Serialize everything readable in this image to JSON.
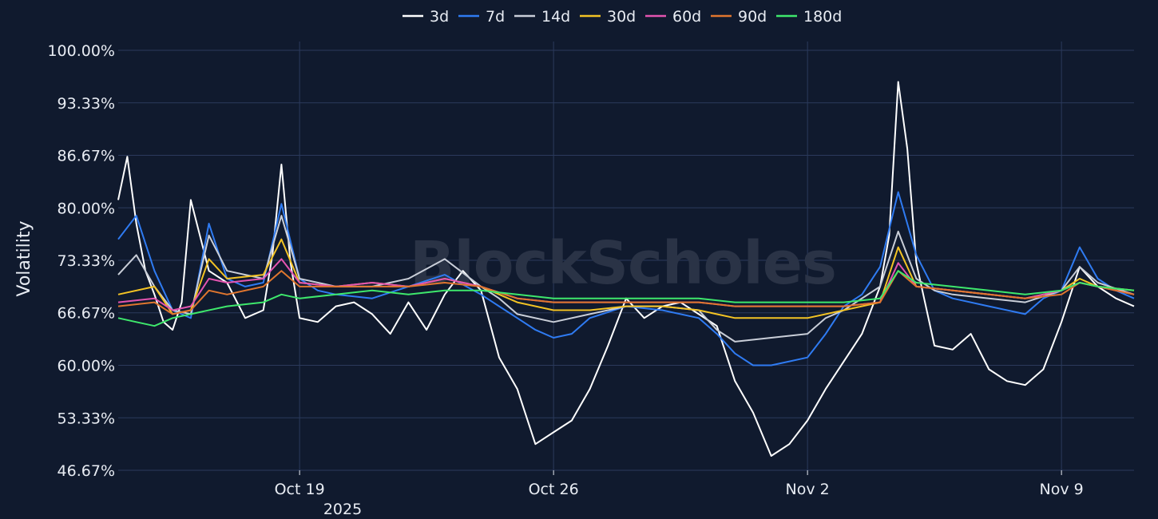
{
  "chart_data": {
    "type": "line",
    "ylabel": "Volatility",
    "xlabel": "",
    "year_label": "2025",
    "watermark": "BlockScholes",
    "x_range": [
      "2025-10-14T00:00",
      "2025-11-11T00:00"
    ],
    "x_ticks": [
      {
        "date": "2025-10-19",
        "label": "Oct 19"
      },
      {
        "date": "2025-10-26",
        "label": "Oct 26"
      },
      {
        "date": "2025-11-02",
        "label": "Nov 2"
      },
      {
        "date": "2025-11-09",
        "label": "Nov 9"
      }
    ],
    "ylim": [
      46.67,
      100.0
    ],
    "y_ticks": [
      "46.67%",
      "53.33%",
      "60.00%",
      "66.67%",
      "73.33%",
      "80.00%",
      "86.67%",
      "93.33%",
      "100.00%"
    ],
    "y_tick_values": [
      46.67,
      53.33,
      60.0,
      66.67,
      73.33,
      80.0,
      86.67,
      93.33,
      100.0
    ],
    "grid": true,
    "legend_position": "top-center",
    "series": [
      {
        "name": "3d",
        "color": "#ffffff",
        "x": [
          "2025-10-14T00:00",
          "2025-10-14T06:00",
          "2025-10-14T12:00",
          "2025-10-14T18:00",
          "2025-10-15T00:00",
          "2025-10-15T06:00",
          "2025-10-15T12:00",
          "2025-10-15T18:00",
          "2025-10-16T00:00",
          "2025-10-16T12:00",
          "2025-10-17T00:00",
          "2025-10-17T12:00",
          "2025-10-18T00:00",
          "2025-10-18T06:00",
          "2025-10-18T12:00",
          "2025-10-18T18:00",
          "2025-10-19T00:00",
          "2025-10-19T12:00",
          "2025-10-20T00:00",
          "2025-10-20T12:00",
          "2025-10-21T00:00",
          "2025-10-21T12:00",
          "2025-10-22T00:00",
          "2025-10-22T12:00",
          "2025-10-23T00:00",
          "2025-10-23T12:00",
          "2025-10-24T00:00",
          "2025-10-24T12:00",
          "2025-10-25T00:00",
          "2025-10-25T12:00",
          "2025-10-26T00:00",
          "2025-10-26T12:00",
          "2025-10-27T00:00",
          "2025-10-27T12:00",
          "2025-10-28T00:00",
          "2025-10-28T12:00",
          "2025-10-29T00:00",
          "2025-10-29T12:00",
          "2025-10-30T00:00",
          "2025-10-30T12:00",
          "2025-10-31T00:00",
          "2025-10-31T12:00",
          "2025-11-01T00:00",
          "2025-11-01T12:00",
          "2025-11-02T00:00",
          "2025-11-02T12:00",
          "2025-11-03T00:00",
          "2025-11-03T12:00",
          "2025-11-04T00:00",
          "2025-11-04T06:00",
          "2025-11-04T12:00",
          "2025-11-04T18:00",
          "2025-11-05T00:00",
          "2025-11-05T12:00",
          "2025-11-06T00:00",
          "2025-11-06T12:00",
          "2025-11-07T00:00",
          "2025-11-07T12:00",
          "2025-11-08T00:00",
          "2025-11-08T12:00",
          "2025-11-09T00:00",
          "2025-11-09T12:00",
          "2025-11-10T00:00",
          "2025-11-10T12:00",
          "2025-11-11T00:00"
        ],
        "y": [
          81.0,
          86.5,
          78.0,
          72.0,
          69.0,
          65.5,
          64.5,
          68.0,
          81.0,
          72.0,
          70.5,
          66.0,
          67.0,
          74.0,
          85.5,
          73.0,
          66.0,
          65.5,
          67.5,
          68.0,
          66.5,
          64.0,
          68.0,
          64.5,
          69.0,
          72.0,
          69.5,
          61.0,
          57.0,
          50.0,
          51.5,
          53.0,
          57.0,
          62.5,
          68.5,
          66.0,
          67.5,
          68.0,
          66.5,
          65.0,
          58.0,
          54.0,
          48.5,
          50.0,
          53.0,
          57.0,
          60.5,
          64.0,
          70.0,
          76.5,
          96.0,
          87.5,
          73.0,
          62.5,
          62.0,
          64.0,
          59.5,
          58.0,
          57.5,
          59.5,
          65.5,
          72.5,
          70.0,
          68.5,
          67.5
        ]
      },
      {
        "name": "7d",
        "color": "#2f7bf2",
        "x": [
          "2025-10-14T00:00",
          "2025-10-14T12:00",
          "2025-10-15T00:00",
          "2025-10-15T12:00",
          "2025-10-16T00:00",
          "2025-10-16T12:00",
          "2025-10-17T00:00",
          "2025-10-17T12:00",
          "2025-10-18T00:00",
          "2025-10-18T12:00",
          "2025-10-19T00:00",
          "2025-10-19T12:00",
          "2025-10-20T00:00",
          "2025-10-21T00:00",
          "2025-10-22T00:00",
          "2025-10-23T00:00",
          "2025-10-24T00:00",
          "2025-10-24T12:00",
          "2025-10-25T00:00",
          "2025-10-25T12:00",
          "2025-10-26T00:00",
          "2025-10-26T12:00",
          "2025-10-27T00:00",
          "2025-10-28T00:00",
          "2025-10-29T00:00",
          "2025-10-30T00:00",
          "2025-10-30T12:00",
          "2025-10-31T00:00",
          "2025-10-31T12:00",
          "2025-11-01T00:00",
          "2025-11-01T12:00",
          "2025-11-02T00:00",
          "2025-11-02T12:00",
          "2025-11-03T00:00",
          "2025-11-03T12:00",
          "2025-11-04T00:00",
          "2025-11-04T12:00",
          "2025-11-05T00:00",
          "2025-11-05T12:00",
          "2025-11-06T00:00",
          "2025-11-07T00:00",
          "2025-11-08T00:00",
          "2025-11-08T12:00",
          "2025-11-09T00:00",
          "2025-11-09T12:00",
          "2025-11-10T00:00",
          "2025-11-10T12:00",
          "2025-11-11T00:00"
        ],
        "y": [
          76.0,
          79.0,
          72.0,
          67.0,
          66.0,
          78.0,
          71.0,
          70.0,
          70.5,
          80.5,
          71.0,
          69.5,
          69.0,
          68.5,
          70.0,
          71.5,
          69.0,
          67.5,
          66.0,
          64.5,
          63.5,
          64.0,
          66.0,
          67.5,
          67.0,
          66.0,
          64.0,
          61.5,
          60.0,
          60.0,
          60.5,
          61.0,
          64.0,
          67.5,
          69.0,
          72.5,
          82.0,
          74.0,
          69.5,
          68.5,
          67.5,
          66.5,
          68.5,
          69.5,
          75.0,
          71.0,
          69.5,
          68.5
        ]
      },
      {
        "name": "14d",
        "color": "#c9ced8",
        "x": [
          "2025-10-14T00:00",
          "2025-10-14T12:00",
          "2025-10-15T00:00",
          "2025-10-15T12:00",
          "2025-10-16T00:00",
          "2025-10-16T12:00",
          "2025-10-17T00:00",
          "2025-10-18T00:00",
          "2025-10-18T12:00",
          "2025-10-19T00:00",
          "2025-10-20T00:00",
          "2025-10-21T00:00",
          "2025-10-22T00:00",
          "2025-10-23T00:00",
          "2025-10-24T00:00",
          "2025-10-24T12:00",
          "2025-10-25T00:00",
          "2025-10-26T00:00",
          "2025-10-27T00:00",
          "2025-10-28T00:00",
          "2025-10-29T00:00",
          "2025-10-30T00:00",
          "2025-10-30T12:00",
          "2025-10-31T00:00",
          "2025-11-01T00:00",
          "2025-11-02T00:00",
          "2025-11-02T12:00",
          "2025-11-03T00:00",
          "2025-11-04T00:00",
          "2025-11-04T12:00",
          "2025-11-05T00:00",
          "2025-11-05T12:00",
          "2025-11-06T00:00",
          "2025-11-07T00:00",
          "2025-11-08T00:00",
          "2025-11-09T00:00",
          "2025-11-09T12:00",
          "2025-11-10T00:00",
          "2025-11-11T00:00"
        ],
        "y": [
          71.5,
          74.0,
          70.0,
          67.0,
          66.5,
          76.5,
          72.0,
          71.0,
          79.0,
          71.0,
          70.0,
          70.0,
          71.0,
          73.5,
          70.0,
          68.5,
          66.5,
          65.5,
          66.5,
          67.5,
          67.5,
          67.0,
          64.5,
          63.0,
          63.5,
          64.0,
          66.0,
          67.0,
          70.0,
          77.0,
          71.0,
          69.5,
          69.0,
          68.5,
          68.0,
          69.5,
          72.5,
          70.5,
          69.0
        ]
      },
      {
        "name": "30d",
        "color": "#f3c324",
        "x": [
          "2025-10-14T00:00",
          "2025-10-15T00:00",
          "2025-10-15T12:00",
          "2025-10-16T00:00",
          "2025-10-16T12:00",
          "2025-10-17T00:00",
          "2025-10-18T00:00",
          "2025-10-18T12:00",
          "2025-10-19T00:00",
          "2025-10-20T00:00",
          "2025-10-21T00:00",
          "2025-10-22T00:00",
          "2025-10-23T00:00",
          "2025-10-24T00:00",
          "2025-10-25T00:00",
          "2025-10-26T00:00",
          "2025-10-27T00:00",
          "2025-10-28T00:00",
          "2025-10-29T00:00",
          "2025-10-30T00:00",
          "2025-10-31T00:00",
          "2025-11-01T00:00",
          "2025-11-02T00:00",
          "2025-11-03T00:00",
          "2025-11-04T00:00",
          "2025-11-04T12:00",
          "2025-11-05T00:00",
          "2025-11-06T00:00",
          "2025-11-07T00:00",
          "2025-11-08T00:00",
          "2025-11-09T00:00",
          "2025-11-09T12:00",
          "2025-11-10T00:00",
          "2025-11-11T00:00"
        ],
        "y": [
          69.0,
          70.0,
          66.5,
          67.0,
          73.5,
          71.0,
          71.5,
          76.0,
          70.5,
          70.0,
          70.5,
          70.0,
          71.0,
          70.0,
          68.0,
          67.0,
          67.0,
          67.5,
          67.5,
          67.0,
          66.0,
          66.0,
          66.0,
          67.0,
          68.0,
          75.0,
          70.0,
          69.5,
          69.0,
          68.5,
          69.5,
          71.0,
          70.0,
          69.5
        ]
      },
      {
        "name": "60d",
        "color": "#e354b0",
        "x": [
          "2025-10-14T00:00",
          "2025-10-15T00:00",
          "2025-10-15T12:00",
          "2025-10-16T00:00",
          "2025-10-16T12:00",
          "2025-10-17T00:00",
          "2025-10-18T00:00",
          "2025-10-18T12:00",
          "2025-10-19T00:00",
          "2025-10-20T00:00",
          "2025-10-21T00:00",
          "2025-10-22T00:00",
          "2025-10-23T00:00",
          "2025-10-24T00:00",
          "2025-10-25T00:00",
          "2025-10-26T00:00",
          "2025-10-27T00:00",
          "2025-10-28T00:00",
          "2025-10-29T00:00",
          "2025-10-30T00:00",
          "2025-10-31T00:00",
          "2025-11-01T00:00",
          "2025-11-02T00:00",
          "2025-11-03T00:00",
          "2025-11-04T00:00",
          "2025-11-04T12:00",
          "2025-11-05T00:00",
          "2025-11-06T00:00",
          "2025-11-07T00:00",
          "2025-11-08T00:00",
          "2025-11-09T00:00",
          "2025-11-09T12:00",
          "2025-11-10T00:00",
          "2025-11-11T00:00"
        ],
        "y": [
          68.0,
          68.5,
          67.0,
          67.5,
          71.0,
          70.5,
          71.0,
          73.5,
          70.5,
          70.0,
          70.5,
          70.0,
          71.0,
          70.0,
          68.5,
          68.0,
          68.0,
          68.0,
          68.0,
          68.0,
          67.5,
          67.5,
          67.5,
          67.5,
          68.0,
          73.0,
          70.0,
          69.5,
          69.0,
          68.5,
          69.5,
          70.5,
          70.0,
          69.0
        ]
      },
      {
        "name": "90d",
        "color": "#e0762e",
        "x": [
          "2025-10-14T00:00",
          "2025-10-15T00:00",
          "2025-10-15T12:00",
          "2025-10-16T00:00",
          "2025-10-16T12:00",
          "2025-10-17T00:00",
          "2025-10-18T00:00",
          "2025-10-18T12:00",
          "2025-10-19T00:00",
          "2025-10-20T00:00",
          "2025-10-21T00:00",
          "2025-10-22T00:00",
          "2025-10-23T00:00",
          "2025-10-24T00:00",
          "2025-10-25T00:00",
          "2025-10-26T00:00",
          "2025-10-27T00:00",
          "2025-10-28T00:00",
          "2025-10-29T00:00",
          "2025-10-30T00:00",
          "2025-10-31T00:00",
          "2025-11-01T00:00",
          "2025-11-02T00:00",
          "2025-11-03T00:00",
          "2025-11-04T00:00",
          "2025-11-04T12:00",
          "2025-11-05T00:00",
          "2025-11-06T00:00",
          "2025-11-07T00:00",
          "2025-11-08T00:00",
          "2025-11-09T00:00",
          "2025-11-09T12:00",
          "2025-11-10T00:00",
          "2025-11-11T00:00"
        ],
        "y": [
          67.5,
          68.0,
          66.5,
          67.0,
          69.5,
          69.0,
          70.0,
          72.0,
          70.0,
          70.0,
          70.0,
          70.0,
          70.5,
          70.0,
          68.5,
          68.0,
          68.0,
          68.0,
          68.0,
          68.0,
          67.5,
          67.5,
          67.5,
          67.5,
          68.0,
          72.0,
          70.0,
          69.5,
          69.0,
          68.5,
          69.0,
          70.5,
          70.0,
          69.0
        ]
      },
      {
        "name": "180d",
        "color": "#3ee86c",
        "x": [
          "2025-10-14T00:00",
          "2025-10-14T12:00",
          "2025-10-15T00:00",
          "2025-10-15T12:00",
          "2025-10-16T00:00",
          "2025-10-17T00:00",
          "2025-10-18T00:00",
          "2025-10-18T12:00",
          "2025-10-19T00:00",
          "2025-10-20T00:00",
          "2025-10-21T00:00",
          "2025-10-22T00:00",
          "2025-10-23T00:00",
          "2025-10-24T00:00",
          "2025-10-25T00:00",
          "2025-10-26T00:00",
          "2025-10-27T00:00",
          "2025-10-28T00:00",
          "2025-10-29T00:00",
          "2025-10-30T00:00",
          "2025-10-31T00:00",
          "2025-11-01T00:00",
          "2025-11-02T00:00",
          "2025-11-03T00:00",
          "2025-11-04T00:00",
          "2025-11-04T12:00",
          "2025-11-05T00:00",
          "2025-11-06T00:00",
          "2025-11-07T00:00",
          "2025-11-08T00:00",
          "2025-11-09T00:00",
          "2025-11-09T12:00",
          "2025-11-10T00:00",
          "2025-11-11T00:00"
        ],
        "y": [
          66.0,
          65.5,
          65.0,
          66.0,
          66.5,
          67.5,
          68.0,
          69.0,
          68.5,
          69.0,
          69.5,
          69.0,
          69.5,
          69.5,
          69.0,
          68.5,
          68.5,
          68.5,
          68.5,
          68.5,
          68.0,
          68.0,
          68.0,
          68.0,
          68.5,
          72.0,
          70.5,
          70.0,
          69.5,
          69.0,
          69.5,
          70.5,
          70.0,
          69.5
        ]
      }
    ]
  }
}
